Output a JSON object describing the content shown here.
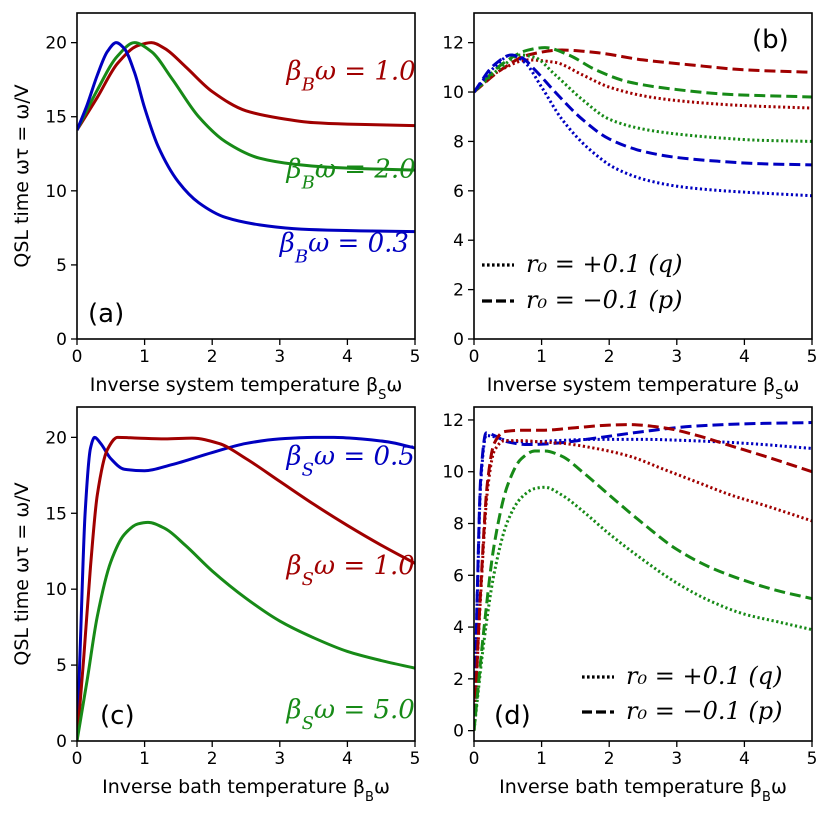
{
  "colors": {
    "red": "#a00000",
    "green": "#178a17",
    "blue": "#0000c0",
    "black": "#000000"
  },
  "chart_data": [
    {
      "id": "a",
      "type": "line",
      "panel_label": "(a)",
      "xlabel": "Inverse system temperature βSω",
      "ylabel": "QSL time ωτ = ω/V",
      "xlim": [
        0,
        5
      ],
      "ylim": [
        0,
        22
      ],
      "xticks": [
        0,
        1,
        2,
        3,
        4,
        5
      ],
      "yticks": [
        0,
        5,
        10,
        15,
        20
      ],
      "series": [
        {
          "name": "βBω = 1.0",
          "color": "red",
          "style": "solid",
          "x": [
            0,
            0.3,
            0.6,
            0.9,
            1.1,
            1.3,
            1.6,
            2.0,
            2.5,
            3.0,
            3.5,
            4.0,
            4.5,
            5.0
          ],
          "y": [
            14.1,
            16.3,
            18.6,
            19.8,
            20.0,
            19.6,
            18.4,
            16.7,
            15.4,
            14.9,
            14.6,
            14.5,
            14.45,
            14.4
          ]
        },
        {
          "name": "βBω = 2.0",
          "color": "green",
          "style": "solid",
          "x": [
            0,
            0.3,
            0.6,
            0.85,
            1.1,
            1.4,
            1.8,
            2.2,
            2.7,
            3.2,
            3.7,
            4.2,
            4.6,
            5.0
          ],
          "y": [
            14.1,
            16.8,
            19.1,
            20.0,
            19.4,
            17.6,
            15.0,
            13.3,
            12.2,
            11.8,
            11.6,
            11.5,
            11.45,
            11.4
          ]
        },
        {
          "name": "βBω = 0.3",
          "color": "blue",
          "style": "solid",
          "x": [
            0,
            0.15,
            0.3,
            0.45,
            0.58,
            0.7,
            0.85,
            1.0,
            1.2,
            1.5,
            1.8,
            2.2,
            2.7,
            3.2,
            3.7,
            4.2,
            5.0
          ],
          "y": [
            14.1,
            15.8,
            17.8,
            19.4,
            20.0,
            19.6,
            18.0,
            15.6,
            13.0,
            10.6,
            9.2,
            8.2,
            7.7,
            7.45,
            7.35,
            7.3,
            7.25
          ]
        }
      ],
      "annotations": [
        {
          "text": "βBω = 1.0",
          "color": "red",
          "x": 3.1,
          "y": 17.5
        },
        {
          "text": "βBω = 2.0",
          "color": "green",
          "x": 3.1,
          "y": 10.9
        },
        {
          "text": "βBω = 0.3",
          "color": "blue",
          "x": 3.0,
          "y": 5.9
        }
      ]
    },
    {
      "id": "b",
      "type": "line",
      "panel_label": "(b)",
      "xlabel": "Inverse system temperature βSω",
      "ylabel": "",
      "xlim": [
        0,
        5
      ],
      "ylim": [
        0,
        13.2
      ],
      "xticks": [
        0,
        1,
        2,
        3,
        4,
        5
      ],
      "yticks": [
        0,
        2,
        4,
        6,
        8,
        10,
        12
      ],
      "series": [
        {
          "name": "red dashed",
          "color": "red",
          "style": "dashed",
          "x": [
            0,
            0.4,
            0.8,
            1.3,
            1.8,
            2.5,
            3.2,
            4.0,
            5.0
          ],
          "y": [
            10.0,
            10.9,
            11.5,
            11.7,
            11.6,
            11.3,
            11.1,
            10.9,
            10.8
          ]
        },
        {
          "name": "red dotted",
          "color": "red",
          "style": "dotted",
          "x": [
            0,
            0.4,
            0.8,
            1.2,
            1.6,
            2.0,
            2.6,
            3.2,
            4.0,
            5.0
          ],
          "y": [
            10.0,
            10.9,
            11.3,
            11.2,
            10.7,
            10.2,
            9.8,
            9.6,
            9.45,
            9.35
          ]
        },
        {
          "name": "green dashed",
          "color": "green",
          "style": "dashed",
          "x": [
            0,
            0.4,
            0.8,
            1.05,
            1.4,
            1.8,
            2.3,
            3.0,
            3.8,
            5.0
          ],
          "y": [
            10.0,
            11.1,
            11.7,
            11.8,
            11.5,
            10.9,
            10.4,
            10.1,
            9.9,
            9.8
          ]
        },
        {
          "name": "green dotted",
          "color": "green",
          "style": "dotted",
          "x": [
            0,
            0.4,
            0.7,
            0.9,
            1.2,
            1.6,
            2.0,
            2.5,
            3.0,
            3.6,
            4.2,
            5.0
          ],
          "y": [
            10.0,
            11.0,
            11.5,
            11.4,
            10.7,
            9.7,
            8.9,
            8.5,
            8.3,
            8.15,
            8.05,
            8.0
          ]
        },
        {
          "name": "blue dashed",
          "color": "blue",
          "style": "dashed",
          "x": [
            0,
            0.3,
            0.55,
            0.7,
            0.9,
            1.2,
            1.6,
            2.0,
            2.5,
            3.0,
            3.6,
            4.2,
            5.0
          ],
          "y": [
            10.0,
            11.1,
            11.5,
            11.4,
            10.9,
            10.0,
            8.9,
            8.1,
            7.6,
            7.35,
            7.2,
            7.1,
            7.05
          ]
        },
        {
          "name": "blue dotted",
          "color": "blue",
          "style": "dotted",
          "x": [
            0,
            0.3,
            0.55,
            0.75,
            1.0,
            1.3,
            1.7,
            2.1,
            2.6,
            3.1,
            3.7,
            4.3,
            5.0
          ],
          "y": [
            10.0,
            11.0,
            11.5,
            11.2,
            10.2,
            8.9,
            7.7,
            6.9,
            6.4,
            6.15,
            6.0,
            5.9,
            5.8
          ]
        }
      ],
      "legend": [
        {
          "label": "r₀ = +0.1 (q)",
          "style": "dotted"
        },
        {
          "label": "r₀ = −0.1 (p)",
          "style": "dashed"
        }
      ]
    },
    {
      "id": "c",
      "type": "line",
      "panel_label": "(c)",
      "xlabel": "Inverse bath temperature βBω",
      "ylabel": "QSL time ωτ = ω/V",
      "xlim": [
        0,
        5
      ],
      "ylim": [
        0,
        22
      ],
      "xticks": [
        0,
        1,
        2,
        3,
        4,
        5
      ],
      "yticks": [
        0,
        5,
        10,
        15,
        20
      ],
      "series": [
        {
          "name": "βSω = 0.5",
          "color": "blue",
          "style": "solid",
          "x": [
            0,
            0.05,
            0.12,
            0.2,
            0.26,
            0.35,
            0.5,
            0.7,
            1.0,
            1.4,
            2.0,
            2.5,
            3.0,
            3.5,
            3.8,
            4.2,
            4.6,
            5.0
          ],
          "y": [
            0,
            6.5,
            15.0,
            19.3,
            20.0,
            19.6,
            18.6,
            17.9,
            17.8,
            18.2,
            19.0,
            19.6,
            19.9,
            20.0,
            20.0,
            19.9,
            19.7,
            19.3
          ]
        },
        {
          "name": "βSω = 1.0",
          "color": "red",
          "style": "solid",
          "x": [
            0,
            0.1,
            0.2,
            0.3,
            0.45,
            0.6,
            0.9,
            1.3,
            1.7,
            2.1,
            2.5,
            3.0,
            3.5,
            4.0,
            4.5,
            5.0
          ],
          "y": [
            0,
            5.5,
            11.5,
            16.2,
            19.2,
            20.0,
            19.95,
            19.9,
            19.95,
            19.6,
            18.6,
            17.1,
            15.6,
            14.2,
            12.9,
            11.7
          ]
        },
        {
          "name": "βSω = 5.0",
          "color": "green",
          "style": "solid",
          "x": [
            0,
            0.15,
            0.3,
            0.5,
            0.7,
            0.9,
            1.05,
            1.3,
            1.6,
            2.0,
            2.5,
            3.0,
            3.5,
            4.0,
            4.5,
            5.0
          ],
          "y": [
            0,
            4.0,
            8.2,
            11.8,
            13.6,
            14.3,
            14.4,
            14.0,
            12.9,
            11.2,
            9.4,
            7.9,
            6.8,
            5.9,
            5.3,
            4.8
          ]
        }
      ],
      "annotations": [
        {
          "text": "βSω = 0.5",
          "color": "blue",
          "x": 3.1,
          "y": 18.2
        },
        {
          "text": "βSω = 1.0",
          "color": "red",
          "x": 3.1,
          "y": 11.0
        },
        {
          "text": "βSω = 5.0",
          "color": "green",
          "x": 3.1,
          "y": 1.5
        }
      ]
    },
    {
      "id": "d",
      "type": "line",
      "panel_label": "(d)",
      "xlabel": "Inverse bath temperature βBω",
      "ylabel": "",
      "xlim": [
        0,
        5
      ],
      "ylim": [
        -0.4,
        12.5
      ],
      "xticks": [
        0,
        1,
        2,
        3,
        4,
        5
      ],
      "yticks": [
        0,
        2,
        4,
        6,
        8,
        10,
        12
      ],
      "series": [
        {
          "name": "blue dashed",
          "color": "blue",
          "style": "dashed",
          "x": [
            0,
            0.05,
            0.1,
            0.18,
            0.3,
            0.5,
            0.8,
            1.2,
            1.8,
            2.5,
            3.2,
            4.0,
            5.0
          ],
          "y": [
            0,
            5.5,
            9.8,
            11.5,
            11.4,
            11.15,
            11.05,
            11.1,
            11.3,
            11.55,
            11.75,
            11.85,
            11.9
          ]
        },
        {
          "name": "blue dotted",
          "color": "blue",
          "style": "dotted",
          "x": [
            0,
            0.05,
            0.1,
            0.18,
            0.3,
            0.5,
            0.8,
            1.2,
            1.8,
            2.5,
            3.2,
            4.0,
            5.0
          ],
          "y": [
            0,
            5.3,
            9.6,
            11.4,
            11.35,
            11.2,
            11.15,
            11.2,
            11.25,
            11.25,
            11.2,
            11.1,
            10.9
          ]
        },
        {
          "name": "red dashed",
          "color": "red",
          "style": "dashed",
          "x": [
            0,
            0.1,
            0.2,
            0.3,
            0.45,
            0.7,
            1.0,
            1.5,
            2.0,
            2.3,
            2.8,
            3.3,
            3.8,
            4.3,
            5.0
          ],
          "y": [
            0,
            5.5,
            9.6,
            11.1,
            11.55,
            11.6,
            11.6,
            11.7,
            11.8,
            11.82,
            11.7,
            11.4,
            11.0,
            10.6,
            10.0
          ]
        },
        {
          "name": "red dotted",
          "color": "red",
          "style": "dotted",
          "x": [
            0,
            0.1,
            0.2,
            0.3,
            0.45,
            0.7,
            1.0,
            1.3,
            1.8,
            2.3,
            2.8,
            3.3,
            3.8,
            4.3,
            5.0
          ],
          "y": [
            0,
            5.3,
            9.3,
            10.8,
            11.2,
            11.2,
            11.15,
            11.1,
            10.9,
            10.6,
            10.1,
            9.6,
            9.1,
            8.7,
            8.1
          ]
        },
        {
          "name": "green dashed",
          "color": "green",
          "style": "dashed",
          "x": [
            0,
            0.15,
            0.3,
            0.5,
            0.7,
            0.9,
            1.05,
            1.3,
            1.6,
            2.0,
            2.5,
            3.0,
            3.5,
            4.0,
            4.5,
            5.0
          ],
          "y": [
            0,
            4.0,
            7.2,
            9.5,
            10.5,
            10.8,
            10.8,
            10.6,
            10.0,
            9.1,
            8.0,
            7.0,
            6.3,
            5.8,
            5.4,
            5.1
          ]
        },
        {
          "name": "green dotted",
          "color": "green",
          "style": "dotted",
          "x": [
            0,
            0.15,
            0.3,
            0.5,
            0.7,
            0.9,
            1.05,
            1.3,
            1.6,
            2.0,
            2.5,
            3.0,
            3.5,
            4.0,
            4.5,
            5.0
          ],
          "y": [
            0,
            3.5,
            6.1,
            8.1,
            9.0,
            9.35,
            9.4,
            9.1,
            8.5,
            7.6,
            6.6,
            5.7,
            5.0,
            4.5,
            4.2,
            3.9
          ]
        }
      ],
      "legend": [
        {
          "label": "r₀ = +0.1 (q)",
          "style": "dotted"
        },
        {
          "label": "r₀ = −0.1 (p)",
          "style": "dashed"
        }
      ]
    }
  ]
}
